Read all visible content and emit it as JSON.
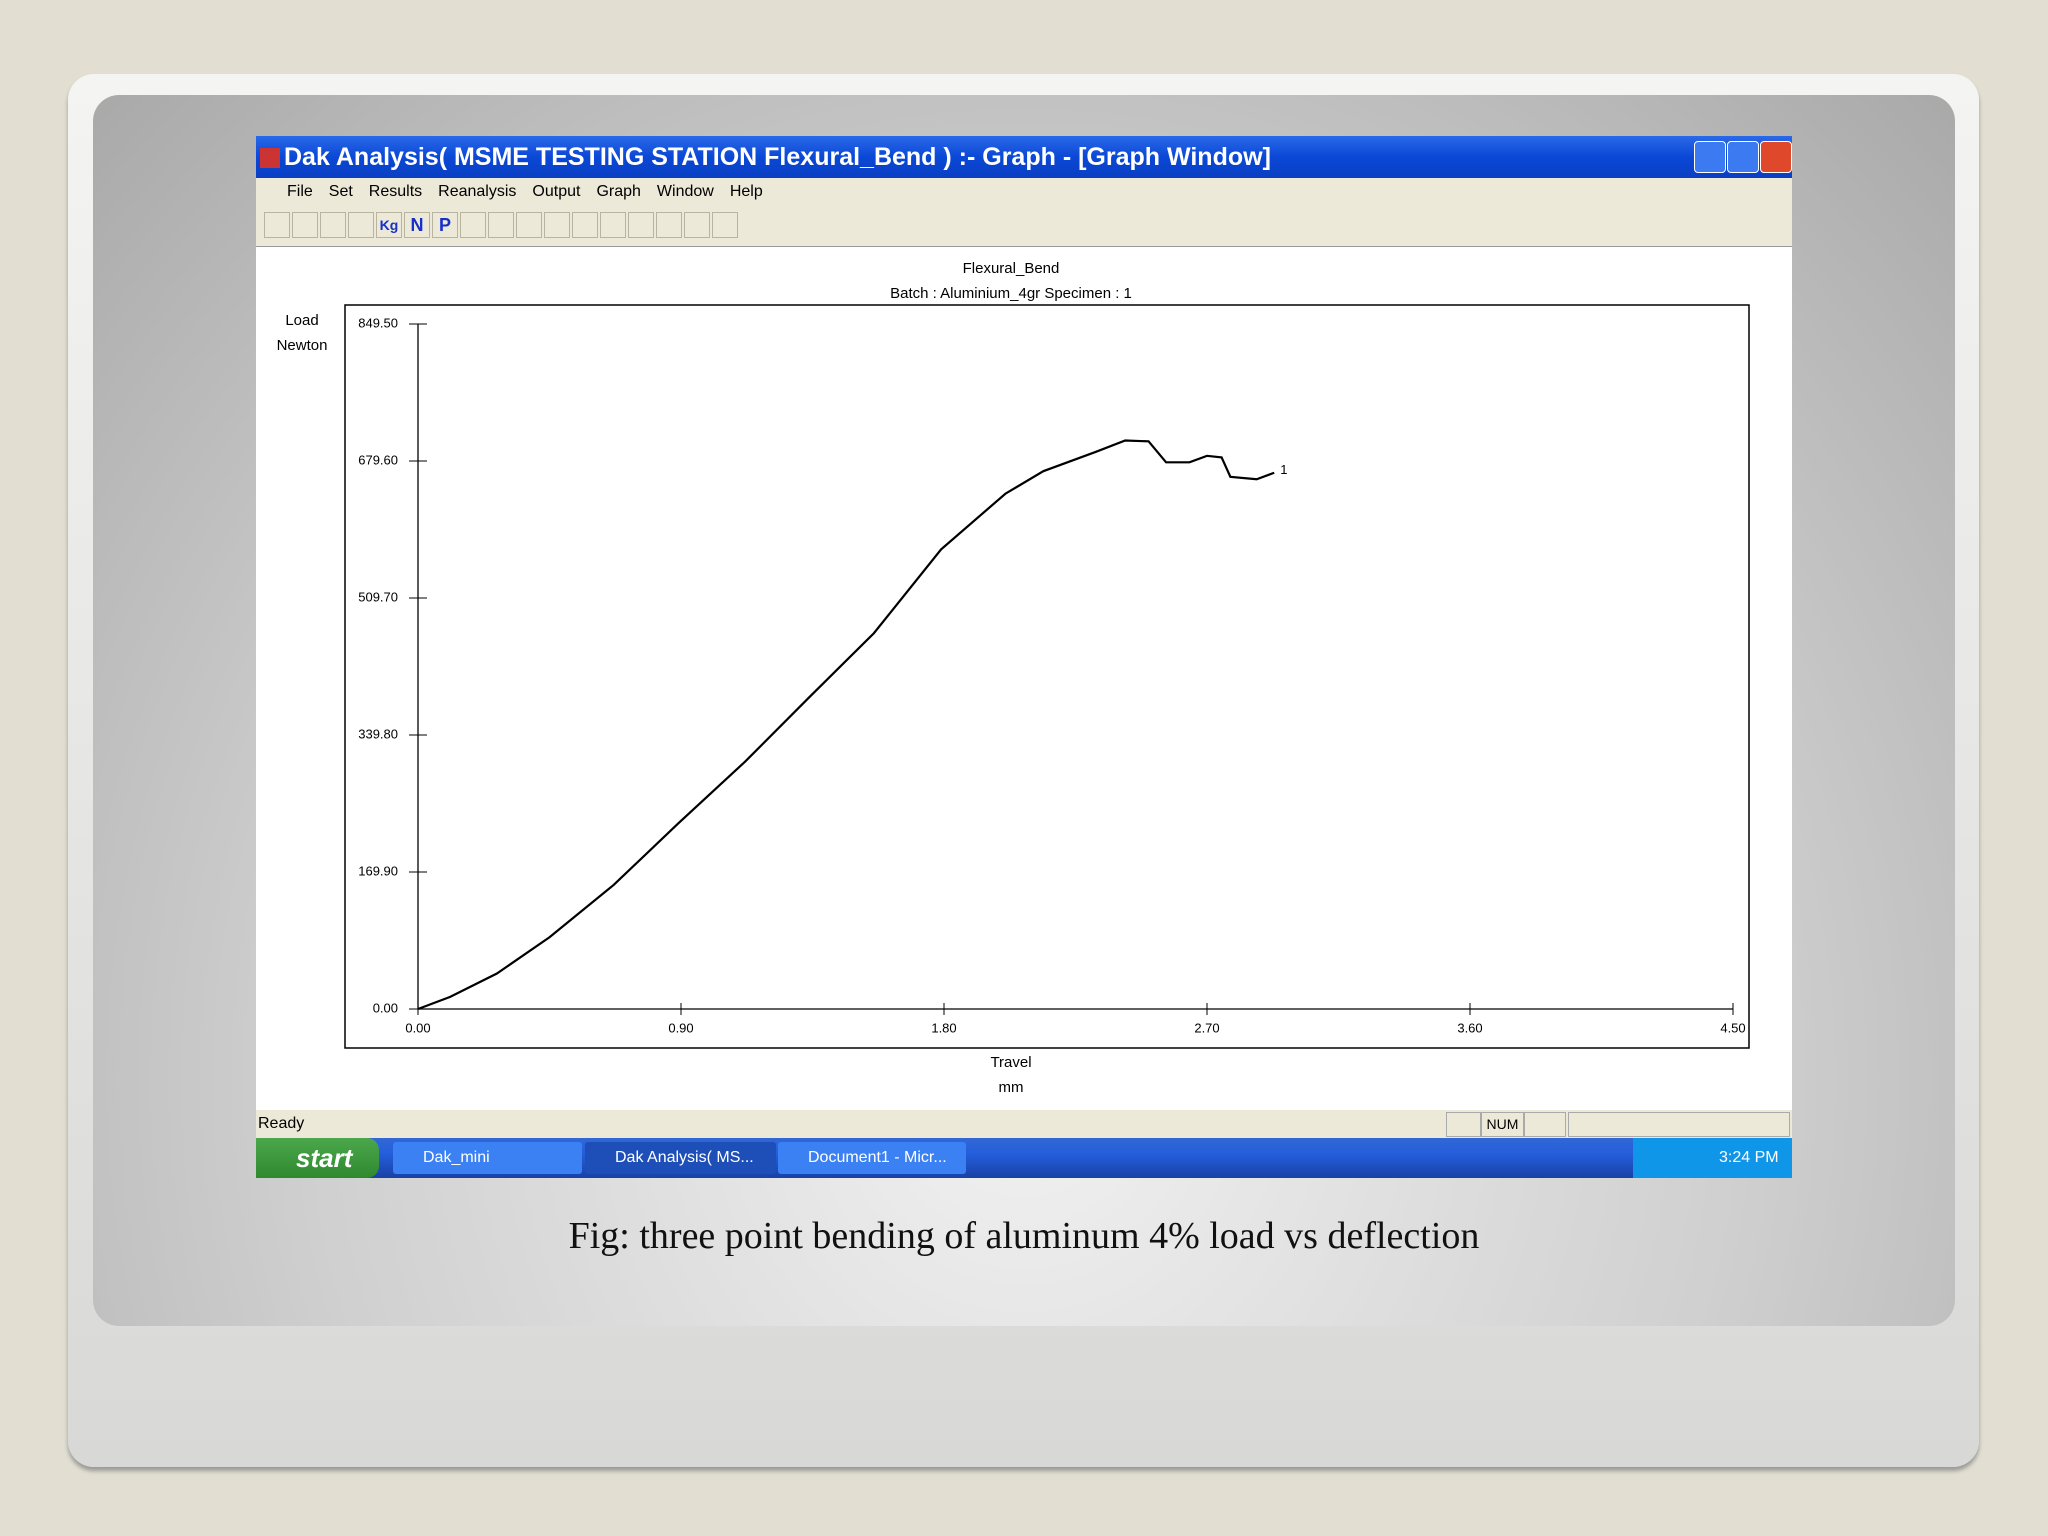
{
  "window": {
    "title": "Dak Analysis( MSME TESTING STATION Flexural_Bend ) :- Graph - [Graph Window]",
    "menu": [
      "File",
      "Set",
      "Results",
      "Reanalysis",
      "Output",
      "Graph",
      "Window",
      "Help"
    ],
    "toolbar": [
      "Kg",
      "N",
      "P"
    ],
    "status": {
      "text": "Ready",
      "num": "NUM"
    },
    "taskbar": {
      "start": "start",
      "items": [
        "Dak_mini",
        "Dak Analysis( MS...",
        "Document1 - Micr..."
      ],
      "clock": "3:24 PM"
    }
  },
  "chart_data": {
    "type": "line",
    "title": "Flexural_Bend",
    "subtitle": "Batch : Aluminium_4gr Specimen : 1",
    "y_label": [
      "Load",
      "Newton"
    ],
    "x_label": [
      "Travel",
      "mm"
    ],
    "x": [
      0,
      0.11,
      0.27,
      0.45,
      0.67,
      0.89,
      1.12,
      1.34,
      1.56,
      1.79,
      2.01,
      2.14,
      2.32,
      2.42,
      2.5,
      2.56,
      2.64,
      2.7,
      2.75,
      2.78,
      2.87,
      2.93
    ],
    "series": [
      {
        "name": "1",
        "color": "#000000",
        "values": [
          0,
          15,
          44,
          89,
          154,
          230,
          307,
          387,
          466,
          570,
          639,
          667,
          691,
          705,
          704,
          678,
          678,
          686,
          684,
          660,
          657,
          665
        ]
      }
    ],
    "xlim": [
      0,
      4.5
    ],
    "ylim": [
      0,
      849.5
    ],
    "xticks": [
      {
        "value": 0,
        "label": "0.00"
      },
      {
        "value": 0.9,
        "label": "0.90"
      },
      {
        "value": 1.8,
        "label": "1.80"
      },
      {
        "value": 2.7,
        "label": "2.70"
      },
      {
        "value": 3.6,
        "label": "3.60"
      },
      {
        "value": 4.5,
        "label": "4.50"
      }
    ],
    "yticks": [
      {
        "value": 0,
        "label": "0.00"
      },
      {
        "value": 169.9,
        "label": "169.90"
      },
      {
        "value": 339.8,
        "label": "339.80"
      },
      {
        "value": 509.7,
        "label": "509.70"
      },
      {
        "value": 679.6,
        "label": "679.60"
      },
      {
        "value": 849.5,
        "label": "849.50"
      }
    ]
  },
  "caption": "Fig: three point bending of aluminum 4% load vs deflection"
}
